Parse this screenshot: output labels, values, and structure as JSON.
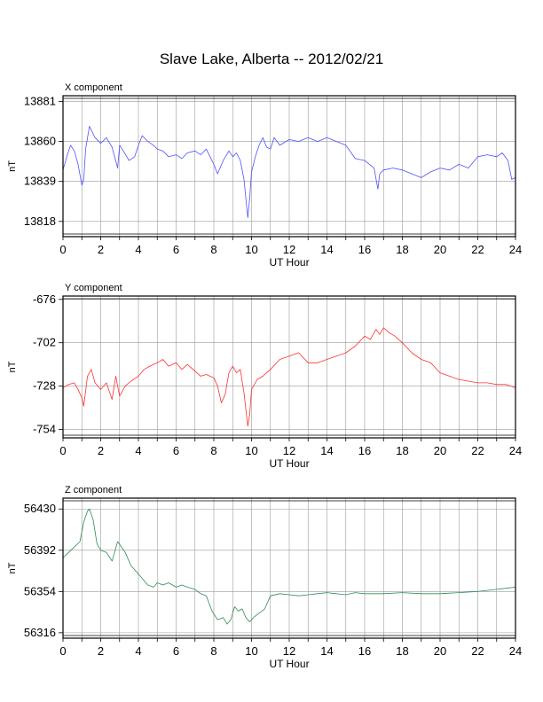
{
  "figure": {
    "title": "Slave Lake, Alberta -- 2012/02/21"
  },
  "chart_data": [
    {
      "type": "line",
      "title": "X component",
      "xlabel": "UT Hour",
      "ylabel": "nT",
      "xlim": [
        0,
        24
      ],
      "ylim": [
        13810,
        13884
      ],
      "xticks": [
        0,
        2,
        4,
        6,
        8,
        10,
        12,
        14,
        16,
        18,
        20,
        22,
        24
      ],
      "yticks": [
        13818,
        13839,
        13860,
        13881
      ],
      "grid": true,
      "color": "#5050ff",
      "series": [
        {
          "x": [
            0,
            0.2,
            0.4,
            0.6,
            0.8,
            1.0,
            1.1,
            1.2,
            1.4,
            1.5,
            1.7,
            2.0,
            2.3,
            2.6,
            2.9,
            3.0,
            3.2,
            3.5,
            3.8,
            4.0,
            4.2,
            4.5,
            4.8,
            5.0,
            5.3,
            5.6,
            6.0,
            6.3,
            6.6,
            7.0,
            7.3,
            7.6,
            8.0,
            8.2,
            8.5,
            8.8,
            9.0,
            9.2,
            9.4,
            9.6,
            9.7,
            9.8,
            9.9,
            10.0,
            10.2,
            10.4,
            10.6,
            10.8,
            11.0,
            11.2,
            11.5,
            12.0,
            12.5,
            13.0,
            13.5,
            14.0,
            14.5,
            15.0,
            15.5,
            16.0,
            16.5,
            16.7,
            16.8,
            17.0,
            17.5,
            18.0,
            18.5,
            19.0,
            19.5,
            20.0,
            20.5,
            21.0,
            21.5,
            22.0,
            22.5,
            23.0,
            23.3,
            23.6,
            23.8,
            24.0
          ],
          "y": [
            13845,
            13852,
            13858,
            13855,
            13848,
            13837,
            13840,
            13856,
            13868,
            13866,
            13862,
            13859,
            13862,
            13857,
            13846,
            13858,
            13855,
            13850,
            13852,
            13858,
            13863,
            13860,
            13858,
            13856,
            13855,
            13852,
            13853,
            13851,
            13854,
            13855,
            13853,
            13856,
            13848,
            13843,
            13850,
            13855,
            13852,
            13854,
            13850,
            13840,
            13830,
            13820,
            13830,
            13844,
            13852,
            13858,
            13862,
            13857,
            13856,
            13862,
            13858,
            13861,
            13860,
            13862,
            13860,
            13862,
            13860,
            13858,
            13851,
            13850,
            13846,
            13835,
            13843,
            13845,
            13846,
            13845,
            13843,
            13841,
            13844,
            13846,
            13845,
            13848,
            13846,
            13852,
            13853,
            13852,
            13854,
            13850,
            13840,
            13841
          ]
        }
      ]
    },
    {
      "type": "line",
      "title": "Y component",
      "xlabel": "UT Hour",
      "ylabel": "nT",
      "xlim": [
        0,
        24
      ],
      "ylim": [
        -759,
        -674
      ],
      "xticks": [
        0,
        2,
        4,
        6,
        8,
        10,
        12,
        14,
        16,
        18,
        20,
        22,
        24
      ],
      "yticks": [
        -676,
        -702,
        -728,
        -754
      ],
      "grid": true,
      "color": "#ff3030",
      "series": [
        {
          "x": [
            0,
            0.3,
            0.6,
            0.8,
            1.0,
            1.1,
            1.3,
            1.5,
            1.7,
            2.0,
            2.3,
            2.6,
            2.8,
            3.0,
            3.3,
            3.6,
            4.0,
            4.3,
            4.6,
            5.0,
            5.3,
            5.6,
            6.0,
            6.3,
            6.6,
            7.0,
            7.3,
            7.6,
            8.0,
            8.2,
            8.4,
            8.6,
            8.8,
            9.0,
            9.2,
            9.4,
            9.6,
            9.7,
            9.8,
            9.9,
            10.0,
            10.3,
            10.6,
            11.0,
            11.5,
            12.0,
            12.5,
            13.0,
            13.5,
            14.0,
            14.5,
            15.0,
            15.5,
            16.0,
            16.3,
            16.6,
            16.8,
            17.0,
            17.3,
            17.6,
            18.0,
            18.5,
            19.0,
            19.5,
            20.0,
            20.5,
            21.0,
            21.5,
            22.0,
            22.5,
            23.0,
            23.5,
            24.0
          ],
          "y": [
            -729,
            -727,
            -726,
            -730,
            -735,
            -740,
            -722,
            -718,
            -726,
            -730,
            -726,
            -736,
            -722,
            -734,
            -728,
            -725,
            -722,
            -718,
            -716,
            -714,
            -712,
            -716,
            -714,
            -718,
            -715,
            -719,
            -722,
            -721,
            -723,
            -728,
            -738,
            -733,
            -720,
            -716,
            -720,
            -718,
            -732,
            -742,
            -752,
            -745,
            -730,
            -724,
            -722,
            -718,
            -712,
            -710,
            -708,
            -714,
            -714,
            -712,
            -710,
            -708,
            -704,
            -698,
            -700,
            -694,
            -697,
            -693,
            -696,
            -698,
            -702,
            -708,
            -712,
            -714,
            -720,
            -722,
            -724,
            -725,
            -726,
            -726,
            -727,
            -727,
            -729
          ]
        }
      ]
    },
    {
      "type": "line",
      "title": "Z component",
      "xlabel": "UT Hour",
      "ylabel": "nT",
      "xlim": [
        0,
        24
      ],
      "ylim": [
        56311,
        56440
      ],
      "xticks": [
        0,
        2,
        4,
        6,
        8,
        10,
        12,
        14,
        16,
        18,
        20,
        22,
        24
      ],
      "yticks": [
        56316,
        56354,
        56392,
        56430
      ],
      "grid": true,
      "color": "#2e8b57",
      "series": [
        {
          "x": [
            0,
            0.3,
            0.6,
            0.9,
            1.1,
            1.3,
            1.4,
            1.6,
            1.8,
            2.0,
            2.3,
            2.6,
            2.9,
            3.1,
            3.3,
            3.6,
            3.9,
            4.2,
            4.5,
            4.8,
            5.0,
            5.3,
            5.6,
            6.0,
            6.3,
            6.6,
            7.0,
            7.3,
            7.6,
            7.9,
            8.2,
            8.5,
            8.7,
            8.9,
            9.1,
            9.3,
            9.5,
            9.7,
            9.9,
            10.1,
            10.4,
            10.7,
            11.0,
            11.5,
            12.0,
            12.5,
            13.0,
            13.5,
            14.0,
            14.5,
            15.0,
            15.5,
            16.0,
            17.0,
            18.0,
            19.0,
            20.0,
            21.0,
            22.0,
            22.5,
            23.0,
            23.5,
            24.0
          ],
          "y": [
            56385,
            56390,
            56395,
            56400,
            56418,
            56428,
            56430,
            56420,
            56398,
            56392,
            56390,
            56382,
            56400,
            56395,
            56390,
            56378,
            56372,
            56366,
            56360,
            56358,
            56362,
            56360,
            56362,
            56358,
            56360,
            56358,
            56356,
            56352,
            56350,
            56336,
            56328,
            56330,
            56324,
            56328,
            56340,
            56336,
            56338,
            56330,
            56326,
            56330,
            56334,
            56338,
            56350,
            56352,
            56351,
            56350,
            56351,
            56352,
            56353,
            56352,
            56351,
            56353,
            56352,
            56352,
            56353,
            56352,
            56352,
            56353,
            56354,
            56355,
            56356,
            56357,
            56358
          ]
        }
      ]
    }
  ]
}
